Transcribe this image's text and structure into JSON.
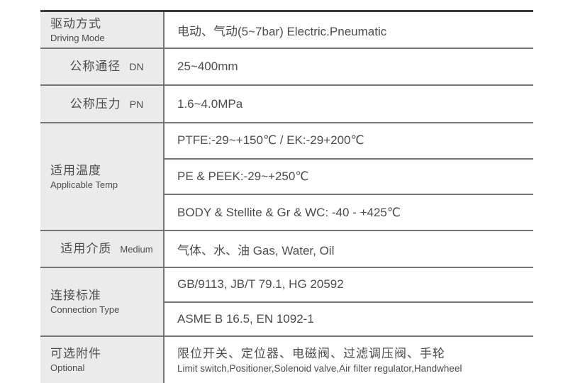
{
  "table": {
    "colors": {
      "header_cell_bg": "#ebebeb",
      "border_dark": "#3b3b3d",
      "border_light": "#747577",
      "text": "#4b4c4e",
      "page_bg": "#ffffff"
    },
    "rows": [
      {
        "label_cn": "驱动方式",
        "label_en": "Driving Mode",
        "values": [
          "电动、气动(5~7bar) Electric.Pneumatic"
        ]
      },
      {
        "label_cn": "公称通径",
        "label_en": "DN",
        "values": [
          "25~400mm"
        ]
      },
      {
        "label_cn": "公称压力",
        "label_en": "PN",
        "values": [
          "1.6~4.0MPa"
        ]
      },
      {
        "label_cn": "适用温度",
        "label_en": "Applicable Temp",
        "values": [
          "PTFE:-29~+150℃ / EK:-29+200℃",
          "PE & PEEK:-29~+250℃",
          "BODY & Stellite & Gr & WC: -40 - +425℃"
        ]
      },
      {
        "label_cn": "适用介质",
        "label_en": "Medium",
        "values": [
          "气体、水、油 Gas, Water, Oil"
        ]
      },
      {
        "label_cn": "连接标准",
        "label_en": "Connection Type",
        "values": [
          "GB/9113, JB/T 79.1, HG 20592",
          "ASME B 16.5, EN 1092-1"
        ]
      },
      {
        "label_cn": "可选附件",
        "label_en": "Optional",
        "value_cn": "限位开关、定位器、电磁阀、过滤调压阀、手轮",
        "value_en": "Limit switch,Positioner,Solenoid valve,Air filter regulator,Handwheel"
      }
    ]
  }
}
